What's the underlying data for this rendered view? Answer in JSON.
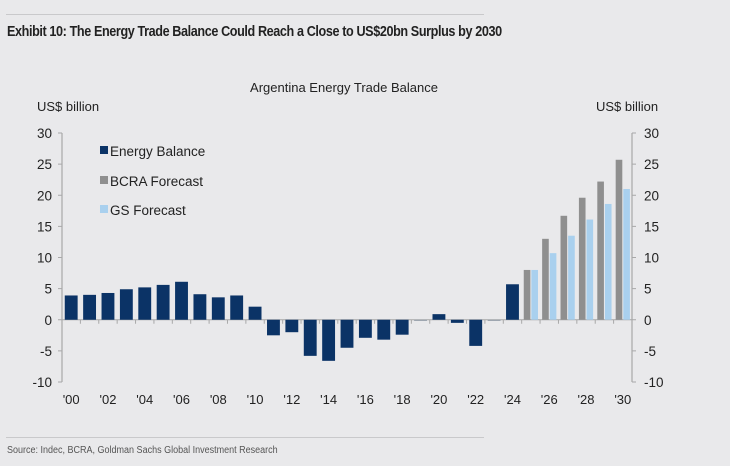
{
  "exhibit": {
    "title": "Exhibit 10: The Energy Trade Balance Could Reach a Close to US$20bn Surplus by 2030",
    "source": "Source: Indec, BCRA, Goldman Sachs Global Investment Research"
  },
  "chart_data": {
    "type": "bar",
    "title": "Argentina Energy Trade Balance",
    "ylabel_left": "US$ billion",
    "ylabel_right": "US$ billion",
    "xlabel": "",
    "ylim": [
      -10,
      30
    ],
    "yticks": [
      30,
      25,
      20,
      15,
      10,
      5,
      0,
      -5,
      -10
    ],
    "ytick_labels": [
      "30",
      "25",
      "20",
      "15",
      "10",
      "5",
      "0",
      "-5",
      "-10"
    ],
    "grid": false,
    "legend_position": "top-left",
    "categories": [
      2000,
      2001,
      2002,
      2003,
      2004,
      2005,
      2006,
      2007,
      2008,
      2009,
      2010,
      2011,
      2012,
      2013,
      2014,
      2015,
      2016,
      2017,
      2018,
      2019,
      2020,
      2021,
      2022,
      2023,
      2024,
      2025,
      2026,
      2027,
      2028,
      2029,
      2030
    ],
    "xtick_labels": [
      "'00",
      "'02",
      "'04",
      "'06",
      "'08",
      "'10",
      "'12",
      "'14",
      "'16",
      "'18",
      "'20",
      "'22",
      "'24",
      "'26",
      "'28",
      "'30"
    ],
    "series": [
      {
        "name": "Energy Balance",
        "color": "#0b3366",
        "values": [
          3.9,
          4.0,
          4.3,
          4.9,
          5.2,
          5.6,
          6.1,
          4.1,
          3.6,
          3.9,
          2.1,
          -2.5,
          -2.0,
          -5.8,
          -6.6,
          -4.5,
          -2.9,
          -3.2,
          -2.4,
          -0.1,
          0.9,
          -0.5,
          -4.2,
          -0.1,
          5.7,
          null,
          null,
          null,
          null,
          null,
          null
        ]
      },
      {
        "name": "BCRA Forecast",
        "color": "#8f8f8f",
        "values": [
          null,
          null,
          null,
          null,
          null,
          null,
          null,
          null,
          null,
          null,
          null,
          null,
          null,
          null,
          null,
          null,
          null,
          null,
          null,
          null,
          null,
          null,
          null,
          null,
          null,
          8.0,
          13.0,
          16.7,
          19.6,
          22.2,
          25.7
        ]
      },
      {
        "name": "GS Forecast",
        "color": "#a9d0ee",
        "values": [
          null,
          null,
          null,
          null,
          null,
          null,
          null,
          null,
          null,
          null,
          null,
          null,
          null,
          null,
          null,
          null,
          null,
          null,
          null,
          null,
          null,
          null,
          null,
          null,
          null,
          8.0,
          10.7,
          13.5,
          16.1,
          18.6,
          21.0
        ]
      }
    ]
  }
}
